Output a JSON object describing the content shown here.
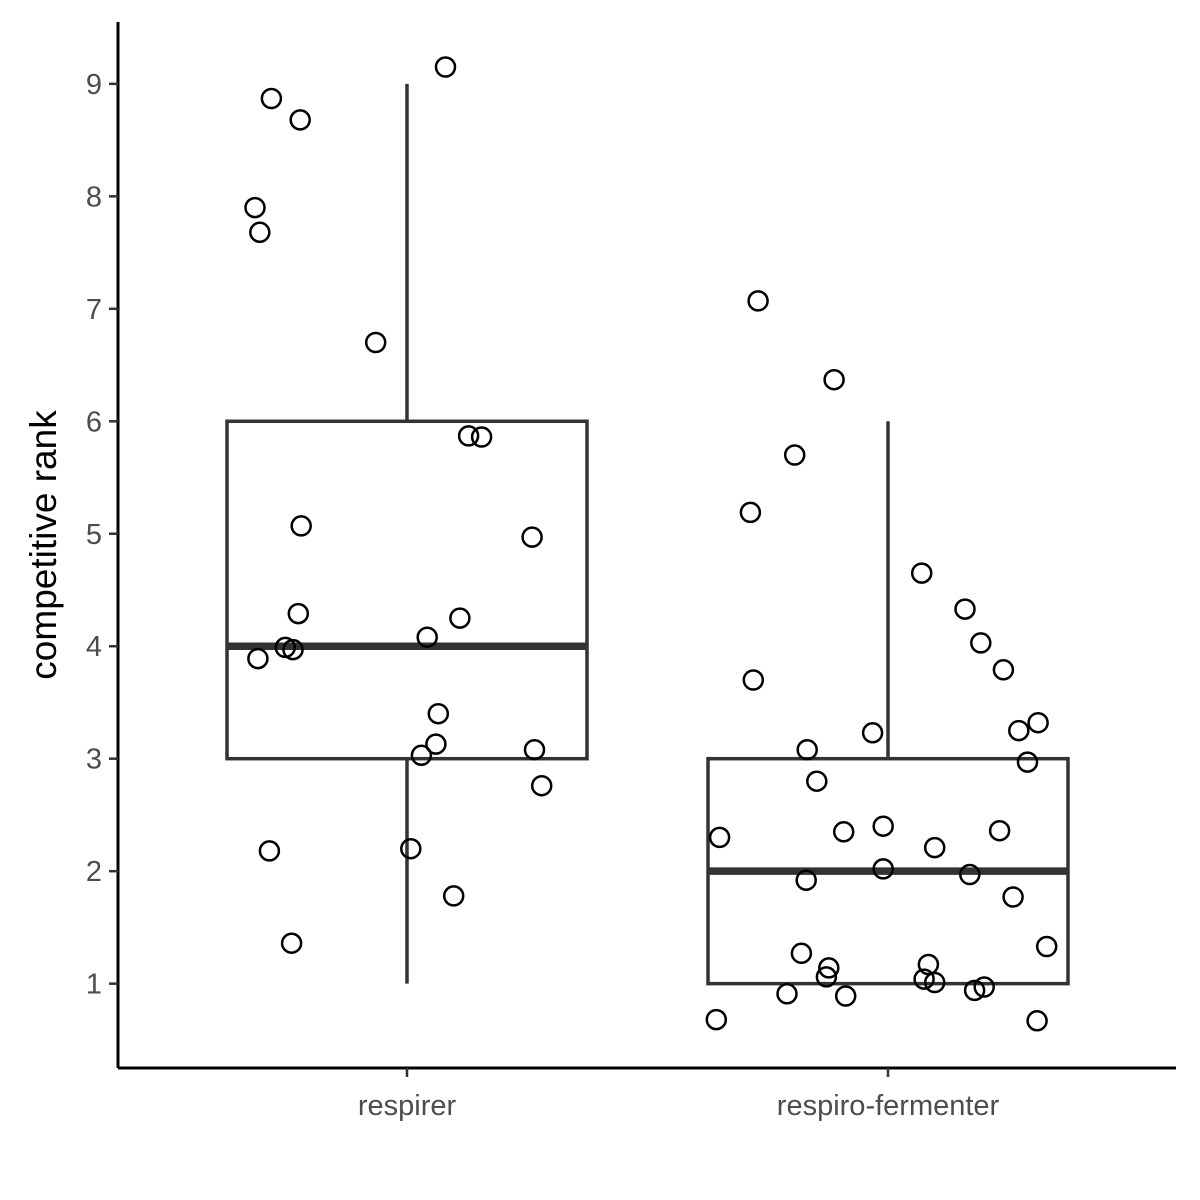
{
  "chart_data": {
    "type": "boxplot",
    "xlabel": "",
    "ylabel": "competitive rank",
    "categories": [
      "respirer",
      "respiro-fermenter"
    ],
    "ylim": [
      0.25,
      9.55
    ],
    "yticks": [
      1,
      2,
      3,
      4,
      5,
      6,
      7,
      8,
      9
    ],
    "grid": false,
    "legend": "none",
    "boxes": [
      {
        "category": "respirer",
        "whisker_low": 1,
        "q1": 3,
        "median": 4,
        "q3": 6,
        "whisker_high": 9
      },
      {
        "category": "respiro-fermenter",
        "whisker_low": 1,
        "q1": 1,
        "median": 2,
        "q3": 3,
        "whisker_high": 6
      }
    ],
    "points": [
      {
        "category": "respirer",
        "x_jitter": -0.316,
        "y": 7.9
      },
      {
        "category": "respirer",
        "x_jitter": -0.306,
        "y": 7.68
      },
      {
        "category": "respirer",
        "x_jitter": -0.282,
        "y": 8.87
      },
      {
        "category": "respirer",
        "x_jitter": -0.222,
        "y": 8.68
      },
      {
        "category": "respirer",
        "x_jitter": 0.08,
        "y": 9.15
      },
      {
        "category": "respirer",
        "x_jitter": -0.065,
        "y": 6.7
      },
      {
        "category": "respirer",
        "x_jitter": 0.128,
        "y": 5.87
      },
      {
        "category": "respirer",
        "x_jitter": 0.155,
        "y": 5.86
      },
      {
        "category": "respirer",
        "x_jitter": -0.22,
        "y": 5.07
      },
      {
        "category": "respirer",
        "x_jitter": 0.26,
        "y": 4.97
      },
      {
        "category": "respirer",
        "x_jitter": -0.226,
        "y": 4.29
      },
      {
        "category": "respirer",
        "x_jitter": 0.11,
        "y": 4.25
      },
      {
        "category": "respirer",
        "x_jitter": 0.042,
        "y": 4.08
      },
      {
        "category": "respirer",
        "x_jitter": -0.253,
        "y": 3.99
      },
      {
        "category": "respirer",
        "x_jitter": -0.237,
        "y": 3.97
      },
      {
        "category": "respirer",
        "x_jitter": -0.31,
        "y": 3.89
      },
      {
        "category": "respirer",
        "x_jitter": 0.065,
        "y": 3.4
      },
      {
        "category": "respirer",
        "x_jitter": 0.06,
        "y": 3.13
      },
      {
        "category": "respirer",
        "x_jitter": 0.03,
        "y": 3.03
      },
      {
        "category": "respirer",
        "x_jitter": 0.265,
        "y": 3.08
      },
      {
        "category": "respirer",
        "x_jitter": 0.28,
        "y": 2.76
      },
      {
        "category": "respirer",
        "x_jitter": -0.286,
        "y": 2.18
      },
      {
        "category": "respirer",
        "x_jitter": 0.008,
        "y": 2.2
      },
      {
        "category": "respirer",
        "x_jitter": 0.097,
        "y": 1.78
      },
      {
        "category": "respirer",
        "x_jitter": -0.24,
        "y": 1.36
      },
      {
        "category": "respiro-fermenter",
        "x_jitter": -0.27,
        "y": 7.07
      },
      {
        "category": "respiro-fermenter",
        "x_jitter": -0.112,
        "y": 6.37
      },
      {
        "category": "respiro-fermenter",
        "x_jitter": -0.194,
        "y": 5.7
      },
      {
        "category": "respiro-fermenter",
        "x_jitter": -0.286,
        "y": 5.19
      },
      {
        "category": "respiro-fermenter",
        "x_jitter": 0.07,
        "y": 4.65
      },
      {
        "category": "respiro-fermenter",
        "x_jitter": 0.16,
        "y": 4.33
      },
      {
        "category": "respiro-fermenter",
        "x_jitter": 0.193,
        "y": 4.03
      },
      {
        "category": "respiro-fermenter",
        "x_jitter": 0.24,
        "y": 3.79
      },
      {
        "category": "respiro-fermenter",
        "x_jitter": -0.28,
        "y": 3.7
      },
      {
        "category": "respiro-fermenter",
        "x_jitter": 0.312,
        "y": 3.32
      },
      {
        "category": "respiro-fermenter",
        "x_jitter": 0.272,
        "y": 3.25
      },
      {
        "category": "respiro-fermenter",
        "x_jitter": -0.032,
        "y": 3.23
      },
      {
        "category": "respiro-fermenter",
        "x_jitter": -0.168,
        "y": 3.08
      },
      {
        "category": "respiro-fermenter",
        "x_jitter": 0.29,
        "y": 2.97
      },
      {
        "category": "respiro-fermenter",
        "x_jitter": -0.148,
        "y": 2.8
      },
      {
        "category": "respiro-fermenter",
        "x_jitter": -0.01,
        "y": 2.4
      },
      {
        "category": "respiro-fermenter",
        "x_jitter": -0.092,
        "y": 2.35
      },
      {
        "category": "respiro-fermenter",
        "x_jitter": 0.232,
        "y": 2.36
      },
      {
        "category": "respiro-fermenter",
        "x_jitter": -0.35,
        "y": 2.3
      },
      {
        "category": "respiro-fermenter",
        "x_jitter": 0.097,
        "y": 2.21
      },
      {
        "category": "respiro-fermenter",
        "x_jitter": -0.01,
        "y": 2.02
      },
      {
        "category": "respiro-fermenter",
        "x_jitter": 0.17,
        "y": 1.97
      },
      {
        "category": "respiro-fermenter",
        "x_jitter": -0.17,
        "y": 1.92
      },
      {
        "category": "respiro-fermenter",
        "x_jitter": 0.26,
        "y": 1.77
      },
      {
        "category": "respiro-fermenter",
        "x_jitter": 0.33,
        "y": 1.33
      },
      {
        "category": "respiro-fermenter",
        "x_jitter": -0.18,
        "y": 1.27
      },
      {
        "category": "respiro-fermenter",
        "x_jitter": 0.084,
        "y": 1.17
      },
      {
        "category": "respiro-fermenter",
        "x_jitter": -0.123,
        "y": 1.14
      },
      {
        "category": "respiro-fermenter",
        "x_jitter": -0.128,
        "y": 1.06
      },
      {
        "category": "respiro-fermenter",
        "x_jitter": 0.075,
        "y": 1.04
      },
      {
        "category": "respiro-fermenter",
        "x_jitter": 0.097,
        "y": 1.01
      },
      {
        "category": "respiro-fermenter",
        "x_jitter": 0.2,
        "y": 0.97
      },
      {
        "category": "respiro-fermenter",
        "x_jitter": 0.18,
        "y": 0.94
      },
      {
        "category": "respiro-fermenter",
        "x_jitter": -0.21,
        "y": 0.91
      },
      {
        "category": "respiro-fermenter",
        "x_jitter": -0.088,
        "y": 0.89
      },
      {
        "category": "respiro-fermenter",
        "x_jitter": -0.357,
        "y": 0.68
      },
      {
        "category": "respiro-fermenter",
        "x_jitter": 0.31,
        "y": 0.67
      }
    ]
  }
}
